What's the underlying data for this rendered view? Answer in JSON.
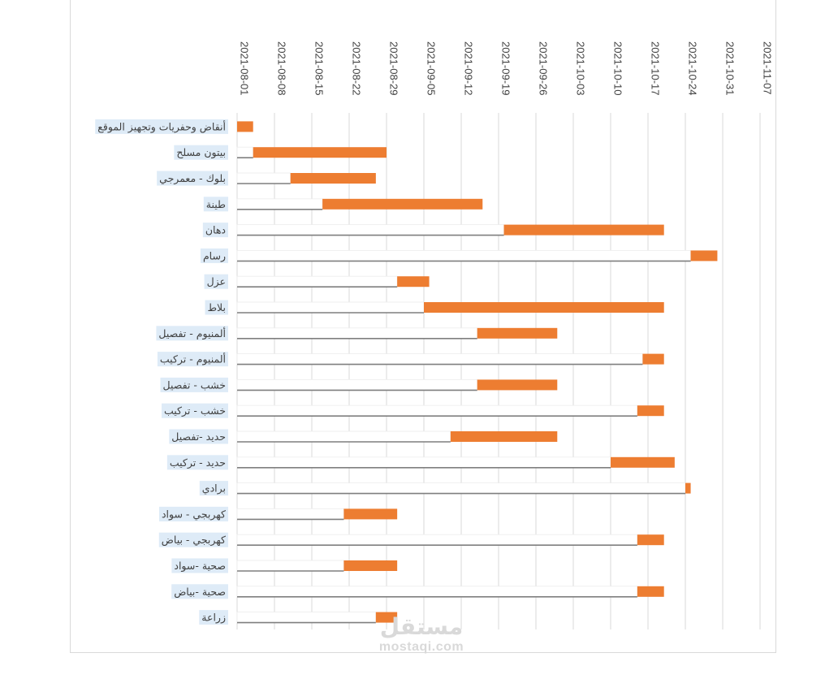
{
  "chart_data": {
    "type": "bar",
    "orientation": "horizontal-gantt",
    "title": "",
    "xlabel": "",
    "ylabel": "",
    "x_ticks": [
      "2021-08-01",
      "2021-08-08",
      "2021-08-15",
      "2021-08-22",
      "2021-08-29",
      "2021-09-05",
      "2021-09-12",
      "2021-09-19",
      "2021-09-26",
      "2021-10-03",
      "2021-10-10",
      "2021-10-17",
      "2021-10-24",
      "2021-10-31",
      "2021-11-07"
    ],
    "xlim": [
      "2021-08-01",
      "2021-11-07"
    ],
    "grid": true,
    "legend": "none",
    "colors": {
      "duration": "#ED7D31",
      "start": "#FFFFFF",
      "start_edge": "#7F7F7F",
      "grid": "#D9D9D9",
      "label_highlight": "#DEEBF7"
    },
    "categories": [
      "أنقاض وحفريات وتجهيز الموقع",
      "بيتون مسلح",
      "بلوك - معمرجي",
      "طينة",
      "دهان",
      "رسام",
      "عزل",
      "بلاط",
      "ألمنيوم - تفصيل",
      "ألمنيوم - تركيب",
      "خشب - تفصيل",
      "خشب - تركيب",
      "حديد -تفصيل",
      "حديد - تركيب",
      "برادي",
      "كهربجي - سواد",
      "كهربجي - بياض",
      "صحية -سواد",
      "صحية -بياض",
      "زراعة"
    ],
    "series": [
      {
        "role": "start",
        "values": [
          "2021-08-01",
          "2021-08-04",
          "2021-08-11",
          "2021-08-17",
          "2021-09-20",
          "2021-10-25",
          "2021-08-31",
          "2021-09-05",
          "2021-09-15",
          "2021-10-16",
          "2021-09-15",
          "2021-10-15",
          "2021-09-10",
          "2021-10-10",
          "2021-10-24",
          "2021-08-21",
          "2021-10-15",
          "2021-08-21",
          "2021-10-15",
          "2021-08-27"
        ]
      },
      {
        "role": "duration",
        "values": [
          3,
          25,
          16,
          30,
          30,
          5,
          6,
          45,
          15,
          4,
          15,
          5,
          20,
          12,
          1,
          10,
          5,
          10,
          5,
          4
        ]
      }
    ]
  },
  "watermark": {
    "arabic": "مستقل",
    "latin": "mostaqi.com"
  }
}
